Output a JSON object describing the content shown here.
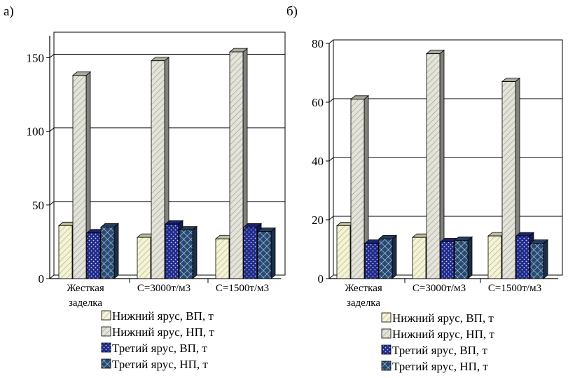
{
  "colors": {
    "upper_vp": "#ecebc5",
    "upper_np": "#d2d2c8",
    "third_vp": "#1f2a8a",
    "third_np": "#2d4a73"
  },
  "legend": [
    {
      "label": "Нижний ярус, ВП, т",
      "pattern": "light-hatch"
    },
    {
      "label": "Нижний ярус, НП, т",
      "pattern": "gray-hatch"
    },
    {
      "label": "Третий ярус, ВП, т",
      "pattern": "blue-dots"
    },
    {
      "label": "Третий ярус, НП, т",
      "pattern": "crosshatch"
    }
  ],
  "chart_data": [
    {
      "panel_label": "а)",
      "type": "bar",
      "categories": [
        "Жесткая заделка",
        "С=3000т/м3",
        "С=1500т/м3"
      ],
      "category_lines": [
        [
          "Жесткая",
          "заделка"
        ],
        [
          "С=3000т/м3"
        ],
        [
          "С=1500т/м3"
        ]
      ],
      "series": [
        {
          "name": "Нижний ярус, ВП, т",
          "values": [
            36,
            28,
            27
          ]
        },
        {
          "name": "Нижний ярус, НП, т",
          "values": [
            138,
            148,
            154
          ]
        },
        {
          "name": "Третий ярус, ВП, т",
          "values": [
            31,
            37,
            35
          ]
        },
        {
          "name": "Третий ярус, НП, т",
          "values": [
            35,
            33,
            32
          ]
        }
      ],
      "ylim": [
        0,
        165
      ],
      "yticks": [
        0,
        50,
        100,
        150
      ],
      "grid": true,
      "legend": "below"
    },
    {
      "panel_label": "б)",
      "type": "bar",
      "categories": [
        "Жесткая заделка",
        "С=3000т/м3",
        "С=1500т/м3"
      ],
      "category_lines": [
        [
          "Жесткая",
          "заделка"
        ],
        [
          "С=3000т/м3"
        ],
        [
          "С=1500т/м3"
        ]
      ],
      "series": [
        {
          "name": "Нижний ярус, ВП, т",
          "values": [
            18,
            14,
            14.5
          ]
        },
        {
          "name": "Нижний ярус, НП, т",
          "values": [
            61,
            76.5,
            67
          ]
        },
        {
          "name": "Третий ярус, ВП, т",
          "values": [
            12,
            12.5,
            14.5
          ]
        },
        {
          "name": "Третий ярус, НП, т",
          "values": [
            13.5,
            13,
            12
          ]
        }
      ],
      "ylim": [
        0,
        80
      ],
      "yticks": [
        0,
        20,
        40,
        60,
        80
      ],
      "grid": true,
      "legend": "below"
    }
  ]
}
